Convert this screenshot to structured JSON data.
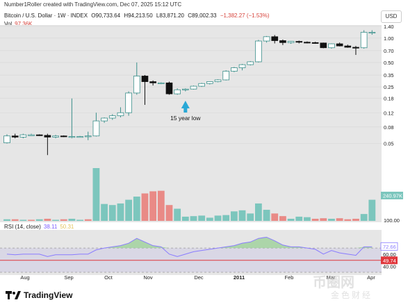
{
  "header": {
    "credit": "Number1Roller created with TradingView.com, Dec 07, 2025 15:12 UTC",
    "symbol": "Bitcoin / U.S. Dollar · 1W · INDEX",
    "open": "O90,733.64",
    "high": "H94,213.50",
    "low": "L83,871.20",
    "close": "C89,002.33",
    "change": "−1,382.27 (−1.53%)",
    "vol_label": "Vol",
    "vol_value": "97.36K",
    "currency_button": "USD"
  },
  "rsi_header": {
    "label": "RSI (14, close)",
    "value": "38.11",
    "value2": "50.31"
  },
  "annotation": {
    "text": "15 year low"
  },
  "brand": {
    "name": "TradingView"
  },
  "watermark": {
    "line1": "币圈网",
    "line2": "金色财经"
  },
  "colors": {
    "up_fill": "#ffffff",
    "up_stroke": "#3a8f8a",
    "down_fill": "#111111",
    "vol_up": "#7cc6bd",
    "vol_down": "#e98a86",
    "rsi_line": "#8a7cff",
    "rsi_fill_green": "#9ed19a",
    "panel_bg": "#e6e6e6",
    "annotation_arrow": "#29a8d6",
    "bottom_line": "#e0363b"
  },
  "chart_data": {
    "type": "candlestick",
    "price_scale": "log",
    "price_ticks": [
      "1.40",
      "1.00",
      "0.70",
      "0.50",
      "0.35",
      "0.25",
      "0.18",
      "0.12",
      "0.08",
      "0.05"
    ],
    "price_tick_values": [
      1.4,
      1.0,
      0.7,
      0.5,
      0.35,
      0.25,
      0.18,
      0.12,
      0.08,
      0.05
    ],
    "price_range": [
      0.028,
      1.45
    ],
    "x_labels": [
      "Aug",
      "Sep",
      "Oct",
      "Nov",
      "Dec",
      "2011",
      "Feb",
      "Mar",
      "Apr"
    ],
    "candles": [
      {
        "o": 0.051,
        "h": 0.065,
        "l": 0.05,
        "c": 0.062
      },
      {
        "o": 0.062,
        "h": 0.066,
        "l": 0.058,
        "c": 0.06
      },
      {
        "o": 0.06,
        "h": 0.066,
        "l": 0.058,
        "c": 0.064
      },
      {
        "o": 0.064,
        "h": 0.066,
        "l": 0.063,
        "c": 0.064
      },
      {
        "o": 0.064,
        "h": 0.065,
        "l": 0.062,
        "c": 0.063
      },
      {
        "o": 0.063,
        "h": 0.066,
        "l": 0.036,
        "c": 0.06
      },
      {
        "o": 0.06,
        "h": 0.064,
        "l": 0.058,
        "c": 0.062
      },
      {
        "o": 0.062,
        "h": 0.063,
        "l": 0.06,
        "c": 0.061
      },
      {
        "o": 0.061,
        "h": 0.18,
        "l": 0.058,
        "c": 0.061
      },
      {
        "o": 0.061,
        "h": 0.062,
        "l": 0.06,
        "c": 0.061
      },
      {
        "o": 0.061,
        "h": 0.07,
        "l": 0.055,
        "c": 0.062
      },
      {
        "o": 0.062,
        "h": 0.12,
        "l": 0.061,
        "c": 0.095
      },
      {
        "o": 0.095,
        "h": 0.105,
        "l": 0.09,
        "c": 0.103
      },
      {
        "o": 0.103,
        "h": 0.115,
        "l": 0.098,
        "c": 0.11
      },
      {
        "o": 0.11,
        "h": 0.14,
        "l": 0.105,
        "c": 0.12
      },
      {
        "o": 0.12,
        "h": 0.22,
        "l": 0.11,
        "c": 0.21
      },
      {
        "o": 0.21,
        "h": 0.5,
        "l": 0.2,
        "c": 0.34
      },
      {
        "o": 0.34,
        "h": 0.35,
        "l": 0.15,
        "c": 0.29
      },
      {
        "o": 0.29,
        "h": 0.3,
        "l": 0.26,
        "c": 0.28
      },
      {
        "o": 0.28,
        "h": 0.285,
        "l": 0.27,
        "c": 0.28
      },
      {
        "o": 0.28,
        "h": 0.29,
        "l": 0.2,
        "c": 0.205
      },
      {
        "o": 0.205,
        "h": 0.24,
        "l": 0.2,
        "c": 0.23
      },
      {
        "o": 0.23,
        "h": 0.24,
        "l": 0.22,
        "c": 0.235
      },
      {
        "o": 0.235,
        "h": 0.26,
        "l": 0.232,
        "c": 0.255
      },
      {
        "o": 0.255,
        "h": 0.28,
        "l": 0.25,
        "c": 0.275
      },
      {
        "o": 0.275,
        "h": 0.29,
        "l": 0.268,
        "c": 0.29
      },
      {
        "o": 0.29,
        "h": 0.31,
        "l": 0.285,
        "c": 0.305
      },
      {
        "o": 0.305,
        "h": 0.4,
        "l": 0.3,
        "c": 0.39
      },
      {
        "o": 0.39,
        "h": 0.44,
        "l": 0.38,
        "c": 0.43
      },
      {
        "o": 0.43,
        "h": 0.48,
        "l": 0.4,
        "c": 0.47
      },
      {
        "o": 0.47,
        "h": 0.52,
        "l": 0.46,
        "c": 0.51
      },
      {
        "o": 0.51,
        "h": 0.95,
        "l": 0.5,
        "c": 0.92
      },
      {
        "o": 0.92,
        "h": 1.06,
        "l": 0.88,
        "c": 1.04
      },
      {
        "o": 1.04,
        "h": 1.09,
        "l": 0.86,
        "c": 0.93
      },
      {
        "o": 0.93,
        "h": 0.96,
        "l": 0.82,
        "c": 0.88
      },
      {
        "o": 0.88,
        "h": 0.92,
        "l": 0.85,
        "c": 0.91
      },
      {
        "o": 0.91,
        "h": 0.93,
        "l": 0.86,
        "c": 0.89
      },
      {
        "o": 0.89,
        "h": 0.91,
        "l": 0.86,
        "c": 0.88
      },
      {
        "o": 0.88,
        "h": 0.9,
        "l": 0.85,
        "c": 0.87
      },
      {
        "o": 0.87,
        "h": 0.88,
        "l": 0.75,
        "c": 0.76
      },
      {
        "o": 0.76,
        "h": 0.86,
        "l": 0.74,
        "c": 0.85
      },
      {
        "o": 0.85,
        "h": 0.88,
        "l": 0.79,
        "c": 0.8
      },
      {
        "o": 0.8,
        "h": 0.83,
        "l": 0.76,
        "c": 0.77
      },
      {
        "o": 0.77,
        "h": 0.8,
        "l": 0.62,
        "c": 0.76
      },
      {
        "o": 0.76,
        "h": 1.25,
        "l": 0.74,
        "c": 1.18
      },
      {
        "o": 1.18,
        "h": 1.25,
        "l": 1.1,
        "c": 1.18
      }
    ],
    "volume": [
      {
        "v": 3,
        "up": true
      },
      {
        "v": 3,
        "up": false
      },
      {
        "v": 2,
        "up": true
      },
      {
        "v": 2,
        "up": false
      },
      {
        "v": 3,
        "up": true
      },
      {
        "v": 4,
        "up": false
      },
      {
        "v": 2,
        "up": true
      },
      {
        "v": 3,
        "up": false
      },
      {
        "v": 4,
        "up": true
      },
      {
        "v": 2,
        "up": true
      },
      {
        "v": 3,
        "up": false
      },
      {
        "v": 100,
        "up": true
      },
      {
        "v": 32,
        "up": true
      },
      {
        "v": 30,
        "up": true
      },
      {
        "v": 33,
        "up": true
      },
      {
        "v": 40,
        "up": true
      },
      {
        "v": 46,
        "up": true
      },
      {
        "v": 52,
        "up": false
      },
      {
        "v": 56,
        "up": false
      },
      {
        "v": 57,
        "up": false
      },
      {
        "v": 30,
        "up": false
      },
      {
        "v": 23,
        "up": true
      },
      {
        "v": 8,
        "up": true
      },
      {
        "v": 9,
        "up": true
      },
      {
        "v": 10,
        "up": true
      },
      {
        "v": 6,
        "up": true
      },
      {
        "v": 10,
        "up": true
      },
      {
        "v": 11,
        "up": true
      },
      {
        "v": 18,
        "up": true
      },
      {
        "v": 20,
        "up": true
      },
      {
        "v": 14,
        "up": true
      },
      {
        "v": 33,
        "up": true
      },
      {
        "v": 21,
        "up": true
      },
      {
        "v": 14,
        "up": false
      },
      {
        "v": 9,
        "up": false
      },
      {
        "v": 4,
        "up": true
      },
      {
        "v": 8,
        "up": true
      },
      {
        "v": 7,
        "up": true
      },
      {
        "v": 4,
        "up": false
      },
      {
        "v": 5,
        "up": false
      },
      {
        "v": 4,
        "up": true
      },
      {
        "v": 5,
        "up": false
      },
      {
        "v": 3,
        "up": false
      },
      {
        "v": 4,
        "up": false
      },
      {
        "v": 13,
        "up": true
      },
      {
        "v": 40,
        "up": true
      }
    ],
    "volume_labels": [
      "240.97K",
      "100.00"
    ],
    "rsi": [
      60,
      59,
      60,
      60,
      60,
      56,
      59,
      59,
      59,
      60,
      60,
      67,
      70,
      72,
      74,
      78,
      86,
      80,
      74,
      72,
      60,
      56,
      60,
      64,
      66,
      68,
      70,
      72,
      74,
      78,
      80,
      86,
      88,
      82,
      75,
      72,
      72,
      70,
      68,
      60,
      66,
      62,
      60,
      58,
      72,
      72
    ],
    "rsi_range": [
      30,
      100
    ],
    "rsi_ticks": [
      "72.66",
      "60.00",
      "49.74",
      "40.00"
    ],
    "rsi_tick_values": [
      72.66,
      60,
      49.74,
      40
    ]
  }
}
